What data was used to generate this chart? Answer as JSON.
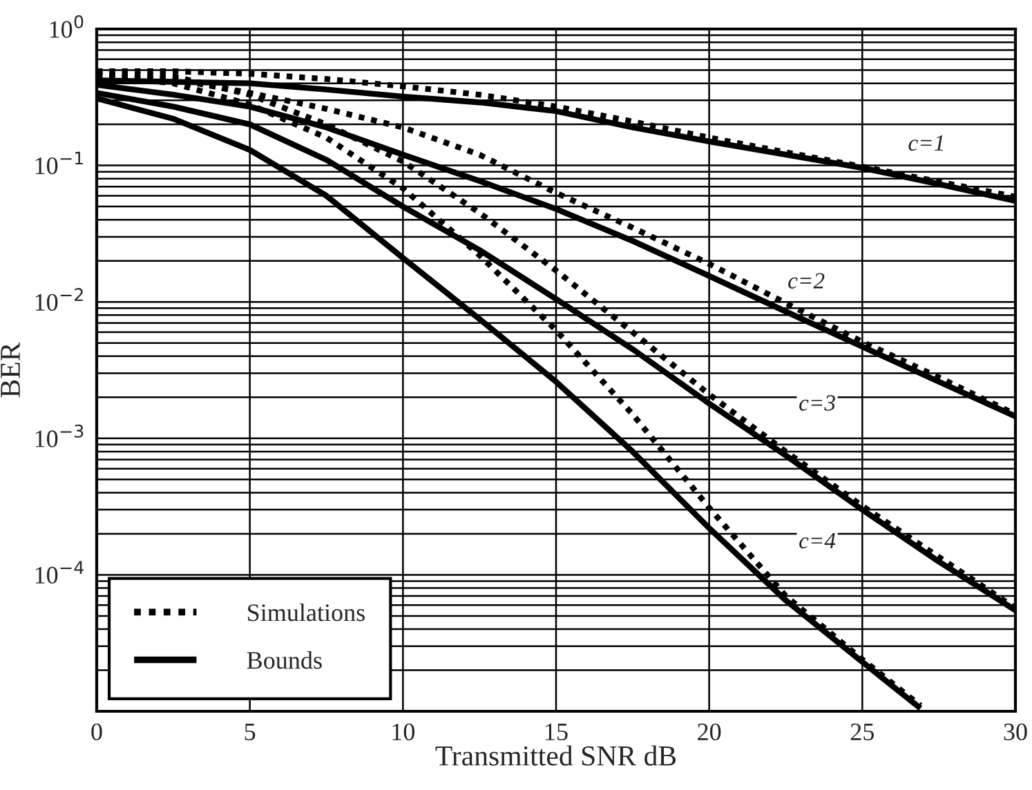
{
  "chart_data": {
    "type": "line",
    "xlabel": "Transmitted SNR dB",
    "ylabel": "BER",
    "log": "y",
    "grid": true,
    "legend": "bottom left",
    "xlim": [
      0,
      30
    ],
    "xticks": [
      0,
      5,
      10,
      15,
      20,
      25,
      30
    ],
    "ylim": [
      1e-05,
      1
    ],
    "yticks": [
      {
        "value": 1,
        "label": "10$^{0}$"
      },
      {
        "value": 0.1,
        "label": "10$^{−1}$"
      },
      {
        "value": 0.01,
        "label": "10$^{−2}$"
      },
      {
        "value": 0.001,
        "label": "10$^{−3}$"
      },
      {
        "value": 0.0001,
        "label": "10$^{−4}$"
      }
    ],
    "x": [
      0,
      2.5,
      5,
      7.5,
      10,
      12.5,
      15,
      17.5,
      20,
      22.5,
      25,
      27.5,
      30
    ],
    "series": [
      {
        "name": "Simulations",
        "color": "#000000",
        "line_style": "dotted",
        "values": [
          0.49,
          0.49,
          0.47,
          0.43,
          0.38,
          0.33,
          0.27,
          0.21,
          0.16,
          0.125,
          0.098,
          0.076,
          0.059
        ]
      },
      {
        "name": "Bounds",
        "color": "#000000",
        "line_style": "solid",
        "values": [
          0.42,
          0.41,
          0.4,
          0.36,
          0.32,
          0.29,
          0.25,
          0.19,
          0.15,
          0.12,
          0.096,
          0.073,
          0.055
        ]
      },
      {
        "color": "#000000",
        "line_style": "dotted",
        "values": [
          0.45,
          0.43,
          0.34,
          0.26,
          0.19,
          0.12,
          0.063,
          0.035,
          0.019,
          0.0098,
          0.0051,
          0.0028,
          0.0015
        ]
      },
      {
        "color": "#000000",
        "line_style": "solid",
        "values": [
          0.39,
          0.33,
          0.27,
          0.19,
          0.12,
          0.077,
          0.048,
          0.028,
          0.0155,
          0.0085,
          0.0047,
          0.0026,
          0.00145
        ]
      },
      {
        "color": "#000000",
        "line_style": "dotted",
        "values": [
          0.48,
          0.45,
          0.33,
          0.2,
          0.107,
          0.045,
          0.017,
          0.006,
          0.0021,
          0.0008,
          0.00032,
          0.000135,
          5.7e-05
        ]
      },
      {
        "color": "#000000",
        "line_style": "solid",
        "values": [
          0.34,
          0.27,
          0.2,
          0.11,
          0.05,
          0.024,
          0.0105,
          0.0045,
          0.0018,
          0.00075,
          0.0003,
          0.000125,
          5.5e-05
        ]
      },
      {
        "color": "#000000",
        "line_style": "dotted",
        "x": [
          0,
          2.5,
          5,
          7.5,
          10,
          12.5,
          15,
          17.5,
          20,
          22.5,
          25,
          26.9
        ],
        "values": [
          0.46,
          0.4,
          0.28,
          0.16,
          0.068,
          0.022,
          0.0062,
          0.0015,
          0.00031,
          7e-05,
          2.4e-05,
          1.1e-05
        ]
      },
      {
        "color": "#000000",
        "line_style": "solid",
        "x": [
          0,
          2.5,
          5,
          7.5,
          10,
          12.5,
          15,
          17.5,
          20,
          22.5,
          25,
          26.9
        ],
        "values": [
          0.31,
          0.22,
          0.13,
          0.06,
          0.021,
          0.0075,
          0.0026,
          0.0008,
          0.00022,
          6.5e-05,
          2.3e-05,
          1.05e-05
        ]
      }
    ],
    "annotations": [
      "c=1",
      "c=2",
      "c=3",
      "c=4"
    ]
  }
}
